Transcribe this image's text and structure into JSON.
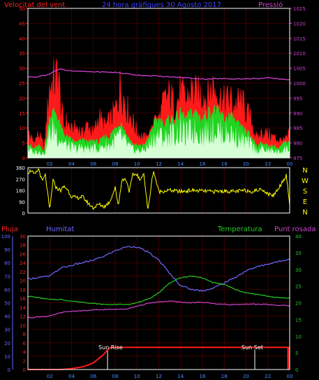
{
  "title": "24 hora gràfiques 30 Agosto 2017",
  "colors": {
    "background": "#000000",
    "frame": "#ffffff",
    "gust": "#ff1a1a",
    "avg_wind": "#22d422",
    "wind_fill": "#d6ffd6",
    "pressure": "#d040d0",
    "direction": "#ffff00",
    "humidity": "#6a6aff",
    "temperature": "#22cc22",
    "dewpoint": "#cc44cc",
    "rain": "#ff1a1a",
    "sun": "#ffffff"
  },
  "chart_data": [
    {
      "type": "line",
      "name": "wind-pressure",
      "labels": {
        "left": "Velocitat del vent",
        "right": "Pressió"
      },
      "x_ticks": [
        "02",
        "04",
        "06",
        "08",
        "10",
        "12",
        "14",
        "16",
        "18",
        "20",
        "22",
        "00"
      ],
      "left_axis": {
        "ticks": [
          0,
          5,
          10,
          15,
          20,
          25,
          30,
          35,
          40,
          45,
          50
        ],
        "ylim": [
          0,
          50
        ]
      },
      "right_axis": {
        "ticks": [
          975,
          980,
          985,
          990,
          995,
          1000,
          1005,
          1010,
          1015,
          1020,
          1025
        ],
        "ylim": [
          975,
          1025
        ]
      },
      "series": [
        {
          "key": "gust",
          "hours": [
            0,
            0.5,
            1,
            1.5,
            2,
            2.5,
            2.8,
            3,
            3.3,
            3.6,
            4,
            4.5,
            5,
            5.5,
            6,
            6.5,
            7,
            7.5,
            8,
            8.5,
            9,
            9.5,
            10,
            10.5,
            11,
            11.5,
            12,
            12.5,
            13,
            13.5,
            14,
            14.5,
            15,
            15.5,
            16,
            16.5,
            17,
            17.5,
            18,
            18.5,
            19,
            19.5,
            20,
            20.5,
            21,
            21.5,
            22,
            22.5,
            23,
            23.5,
            24
          ],
          "values": [
            10,
            6,
            9,
            4,
            28,
            30,
            33,
            20,
            12,
            14,
            10,
            12,
            9,
            13,
            9,
            16,
            12,
            14,
            18,
            28,
            20,
            15,
            10,
            8,
            7,
            9,
            14,
            22,
            24,
            20,
            25,
            22,
            26,
            24,
            25,
            23,
            28,
            24,
            21,
            23,
            20,
            22,
            18,
            14,
            7,
            10,
            9,
            8,
            7,
            6,
            9
          ]
        },
        {
          "key": "avg_wind",
          "hours": [
            0,
            0.5,
            1,
            1.5,
            2,
            2.5,
            3,
            3.5,
            4,
            4.5,
            5,
            5.5,
            6,
            6.5,
            7,
            7.5,
            8,
            8.5,
            9,
            9.5,
            10,
            10.5,
            11,
            11.5,
            12,
            12.5,
            13,
            13.5,
            14,
            14.5,
            15,
            15.5,
            16,
            16.5,
            17,
            17.5,
            18,
            18.5,
            19,
            19.5,
            20,
            20.5,
            21,
            21.5,
            22,
            22.5,
            23,
            23.5,
            24
          ],
          "values": [
            5,
            3,
            4,
            2,
            14,
            16,
            10,
            7,
            6,
            5,
            6,
            5,
            6,
            5,
            7,
            7,
            10,
            12,
            8,
            5,
            4,
            4,
            6,
            11,
            13,
            11,
            13,
            13,
            15,
            13,
            15,
            15,
            13,
            15,
            16,
            15,
            13,
            14,
            12,
            10,
            9,
            7,
            4,
            5,
            4,
            4,
            3,
            5,
            5
          ]
        },
        {
          "key": "pressure",
          "hours": [
            0,
            1,
            2,
            2.5,
            3,
            3.5,
            4,
            5,
            6,
            8,
            10,
            12,
            14,
            16,
            18,
            20,
            22,
            23,
            24
          ],
          "values": [
            1002,
            1002.2,
            1003,
            1004.2,
            1004.8,
            1004.3,
            1004,
            1003.9,
            1003.8,
            1003.6,
            1002.7,
            1002.3,
            1001.9,
            1001.4,
            1001.5,
            1001.4,
            1001.7,
            1001.4,
            1001.2
          ]
        }
      ]
    },
    {
      "type": "line",
      "name": "wind-direction",
      "labels": {
        "right": [
          "N",
          "W",
          "S",
          "E",
          "N"
        ]
      },
      "left_axis": {
        "ticks": [
          0,
          90,
          180,
          270,
          360
        ],
        "ylim": [
          0,
          360
        ]
      },
      "series": [
        {
          "key": "direction",
          "hours": [
            0,
            0.3,
            0.6,
            1,
            1.3,
            1.6,
            2,
            2.3,
            2.6,
            3,
            3.3,
            3.6,
            4,
            4.5,
            5,
            5.5,
            6,
            6.5,
            7,
            7.5,
            8,
            8.3,
            8.6,
            9,
            9.3,
            9.6,
            10,
            10.3,
            10.6,
            11,
            11.5,
            12,
            13,
            14,
            15,
            16,
            17,
            18,
            19,
            20,
            20.5,
            21,
            21.5,
            22,
            22.5,
            23,
            23.4,
            23.7,
            24
          ],
          "values": [
            320,
            340,
            300,
            350,
            250,
            300,
            20,
            260,
            200,
            180,
            210,
            190,
            130,
            120,
            130,
            80,
            40,
            70,
            50,
            90,
            200,
            60,
            260,
            270,
            170,
            300,
            310,
            250,
            330,
            20,
            340,
            170,
            180,
            170,
            180,
            175,
            170,
            175,
            170,
            180,
            170,
            180,
            190,
            150,
            140,
            200,
            260,
            300,
            60
          ]
        }
      ]
    },
    {
      "type": "line",
      "name": "rain-humidity-temperature",
      "labels": {
        "rain": "Pluja",
        "humidity": "Humitat",
        "temperature": "Temperatura",
        "dewpoint": "Punt rosada",
        "sun_rise": "Sun Rise",
        "sun_set": "Sun Set"
      },
      "x_ticks": [
        "02",
        "04",
        "06",
        "08",
        "10",
        "12",
        "14",
        "16",
        "18",
        "20",
        "22",
        "00"
      ],
      "humidity_axis": {
        "ticks": [
          0,
          10,
          20,
          30,
          40,
          50,
          60,
          70,
          80,
          90,
          100
        ],
        "ylim": [
          0,
          100
        ]
      },
      "rain_axis": {
        "ticks": [
          0,
          2,
          4,
          6,
          8,
          10,
          12,
          14,
          16,
          18,
          20,
          22,
          24,
          26,
          28,
          30
        ],
        "ylim": [
          0,
          30
        ]
      },
      "temp_axis": {
        "ticks": [
          0,
          5,
          10,
          15,
          20,
          25,
          30,
          35,
          40
        ],
        "ylim": [
          0,
          40
        ]
      },
      "sun_rise_hour": 7.3,
      "sun_set_hour": 20.8,
      "series": [
        {
          "key": "humidity",
          "hours": [
            0,
            1,
            2,
            3,
            4,
            5,
            6,
            7,
            8,
            9,
            10,
            11,
            12,
            13,
            14,
            15,
            16,
            17,
            18,
            19,
            20,
            21,
            22,
            23,
            24
          ],
          "values": [
            68,
            69,
            70,
            76,
            78,
            80,
            82,
            85,
            89,
            92,
            92,
            88,
            82,
            72,
            63,
            60,
            59,
            61,
            65,
            69,
            74,
            77,
            79,
            81,
            83
          ]
        },
        {
          "key": "temperature",
          "hours": [
            0,
            1,
            2,
            3,
            4,
            5,
            6,
            7,
            8,
            9,
            10,
            11,
            12,
            13,
            14,
            15,
            16,
            17,
            18,
            19,
            20,
            21,
            22,
            23,
            24
          ],
          "values": [
            22,
            21.5,
            21,
            21,
            20.5,
            20.2,
            19.8,
            19.5,
            19.5,
            19.5,
            20,
            21,
            23,
            26,
            27.5,
            28,
            27.5,
            26,
            25.5,
            24,
            23,
            22.5,
            22,
            21.5,
            21.5
          ]
        },
        {
          "key": "dewpoint",
          "hours": [
            0,
            1,
            2,
            3,
            4,
            5,
            6,
            7,
            8,
            9,
            10,
            11,
            12,
            13,
            14,
            15,
            16,
            17,
            18,
            19,
            20,
            21,
            22,
            23,
            24
          ],
          "values": [
            15.5,
            15.8,
            16,
            17,
            17.5,
            17.6,
            17.8,
            18,
            18,
            18.2,
            19,
            19.8,
            20.3,
            20.5,
            20.2,
            20,
            20.2,
            19.8,
            19.5,
            19.5,
            19.5,
            19.6,
            19.5,
            19.2,
            19.2
          ]
        },
        {
          "key": "rain",
          "hours": [
            0,
            3,
            4,
            5,
            5.5,
            6,
            6.5,
            7,
            7.3,
            7.6,
            8,
            24
          ],
          "values": [
            0,
            0,
            0.2,
            0.6,
            1,
            1.5,
            2.5,
            3.5,
            4.5,
            5,
            5,
            5
          ]
        }
      ]
    }
  ]
}
